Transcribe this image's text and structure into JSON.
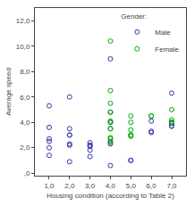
{
  "chart_data": {
    "type": "scatter",
    "xlabel": "Housing condition (according to Table 2)",
    "ylabel": "Average speed",
    "xlim": [
      0.3,
      7.7
    ],
    "ylim": [
      -0.2,
      13.0
    ],
    "xticks": [
      {
        "value": 1.0,
        "label": "1,0"
      },
      {
        "value": 2.0,
        "label": "2,0"
      },
      {
        "value": 3.0,
        "label": "3,0"
      },
      {
        "value": 4.0,
        "label": "4,0"
      },
      {
        "value": 5.0,
        "label": "5,0"
      },
      {
        "value": 6.0,
        "label": "6,0"
      },
      {
        "value": 7.0,
        "label": "7,0"
      }
    ],
    "yticks": [
      {
        "value": 0.0,
        "label": ",0"
      },
      {
        "value": 2.0,
        "label": "2,0"
      },
      {
        "value": 4.0,
        "label": "4,0"
      },
      {
        "value": 6.0,
        "label": "6,0"
      },
      {
        "value": 8.0,
        "label": "8,0"
      },
      {
        "value": 10.0,
        "label": "10,0"
      },
      {
        "value": 12.0,
        "label": "12,0"
      }
    ],
    "grid": false,
    "legend": "upper right",
    "legend_title": "Gender:",
    "series": [
      {
        "name": "Male",
        "color": "#3333aa",
        "marker": "circle-open",
        "x": [
          1.0,
          1.0,
          1.0,
          1.0,
          1.0,
          1.0,
          2.0,
          2.0,
          2.0,
          2.0,
          2.0,
          2.0,
          2.0,
          3.0,
          3.0,
          3.0,
          3.0,
          3.0,
          3.0,
          4.0,
          4.0,
          4.0,
          4.0,
          4.0,
          4.0,
          4.0,
          5.0,
          5.0,
          6.0,
          6.0,
          6.0,
          7.0,
          7.0,
          7.0,
          7.0,
          7.0
        ],
        "values": [
          5.3,
          3.6,
          2.7,
          2.5,
          2.0,
          1.4,
          6.0,
          3.5,
          3.0,
          3.0,
          2.3,
          2.2,
          0.9,
          2.4,
          2.2,
          2.2,
          2.1,
          1.8,
          1.3,
          9.0,
          4.8,
          4.0,
          3.5,
          2.5,
          2.3,
          0.6,
          1.0,
          1.0,
          4.1,
          3.3,
          3.2,
          6.3,
          4.0,
          3.9,
          3.7,
          3.7
        ]
      },
      {
        "name": "Female",
        "color": "#00aa00",
        "marker": "circle-open",
        "x": [
          4.0,
          4.0,
          4.0,
          4.0,
          4.0,
          4.0,
          4.0,
          4.0,
          4.0,
          4.0,
          5.0,
          5.0,
          5.0,
          5.0,
          5.0,
          5.0,
          6.0,
          6.0,
          7.0,
          7.0,
          7.0,
          7.0
        ],
        "values": [
          10.4,
          6.5,
          5.5,
          4.8,
          4.1,
          4.0,
          3.5,
          2.8,
          2.7,
          2.4,
          4.5,
          4.0,
          3.4,
          3.0,
          3.0,
          2.9,
          4.5,
          4.5,
          5.0,
          4.2,
          4.0,
          4.0
        ]
      }
    ]
  }
}
